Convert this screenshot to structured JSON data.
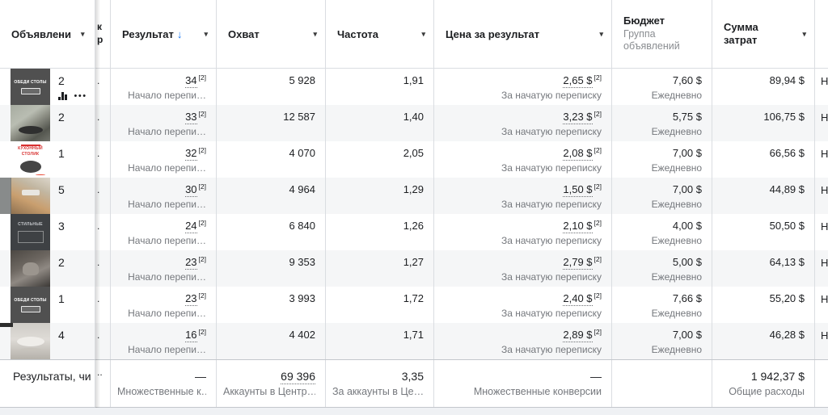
{
  "icons": {
    "caret": "▾",
    "more": "•••",
    "sort_down": "↓"
  },
  "colors": {
    "accent_blue": "#1877f2",
    "stripe": "#f5f6f7",
    "border": "#dadde1",
    "text": "#1c1e21",
    "muted": "#75787d"
  },
  "header": {
    "ads": {
      "label": "Объявлени"
    },
    "sliver": {
      "line1": "к",
      "line2": "р"
    },
    "result": {
      "label": "Результат"
    },
    "reach": {
      "label": "Охват"
    },
    "frequency": {
      "label": "Частота"
    },
    "cost_per_result": {
      "label": "Цена за результат"
    },
    "budget": {
      "label": "Бюджет",
      "sublabel": "Группа объявлений"
    },
    "amount_spent": {
      "line1": "Сумма",
      "line2": "затрат"
    }
  },
  "rows": [
    {
      "count": "2",
      "has_icons": true,
      "thumb": {
        "kind": "t-dark-promo",
        "text": "ОБЕДИ СТОЛЫ"
      },
      "sliver": ".",
      "result": "34",
      "result_sup": "[2]",
      "result_note": "Начало перепи…",
      "reach": "5 928",
      "frequency": "1,91",
      "cpr": "2,65 $",
      "cpr_sup": "[2]",
      "cpr_note": "За начатую переписку",
      "budget": "7,60 $",
      "budget_note": "Ежедневно",
      "spent": "89,94 $",
      "edge": "Н"
    },
    {
      "count": "2",
      "has_icons": false,
      "thumb": {
        "kind": "t-sofa",
        "text": ""
      },
      "sliver": ".",
      "result": "33",
      "result_sup": "[2]",
      "result_note": "Начало перепи…",
      "reach": "12 587",
      "frequency": "1,40",
      "cpr": "3,23 $",
      "cpr_sup": "[2]",
      "cpr_note": "За начатую переписку",
      "budget": "5,75 $",
      "budget_note": "Ежедневно",
      "spent": "106,75 $",
      "edge": "Н"
    },
    {
      "count": "1",
      "has_icons": false,
      "thumb": {
        "kind": "t-kitchen",
        "text": "КУХОННЫЙ СТОЛИК"
      },
      "sliver": ".",
      "result": "32",
      "result_sup": "[2]",
      "result_note": "Начало перепи…",
      "reach": "4 070",
      "frequency": "2,05",
      "cpr": "2,08 $",
      "cpr_sup": "[2]",
      "cpr_note": "За начатую переписку",
      "budget": "7,00 $",
      "budget_note": "Ежедневно",
      "spent": "66,56 $",
      "edge": "Н"
    },
    {
      "count": "5",
      "has_icons": false,
      "thumb": {
        "kind": "t-interior",
        "text": ""
      },
      "sliver": ".",
      "result": "30",
      "result_sup": "[2]",
      "result_note": "Начало перепи…",
      "reach": "4 964",
      "frequency": "1,29",
      "cpr": "1,50 $",
      "cpr_sup": "[2]",
      "cpr_note": "За начатую переписку",
      "budget": "7,00 $",
      "budget_note": "Ежедневно",
      "spent": "44,89 $",
      "edge": "Н"
    },
    {
      "count": "3",
      "has_icons": false,
      "thumb": {
        "kind": "t-story-dark",
        "text": "СТИЛЬНЫЕ"
      },
      "sliver": ".",
      "result": "24",
      "result_sup": "[2]",
      "result_note": "Начало перепи…",
      "reach": "6 840",
      "frequency": "1,26",
      "cpr": "2,10 $",
      "cpr_sup": "[2]",
      "cpr_note": "За начатую переписку",
      "budget": "4,00 $",
      "budget_note": "Ежедневно",
      "spent": "50,50 $",
      "edge": "Н"
    },
    {
      "count": "2",
      "has_icons": false,
      "thumb": {
        "kind": "t-chair",
        "text": ""
      },
      "sliver": ".",
      "result": "23",
      "result_sup": "[2]",
      "result_note": "Начало перепи…",
      "reach": "9 353",
      "frequency": "1,27",
      "cpr": "2,79 $",
      "cpr_sup": "[2]",
      "cpr_note": "За начатую переписку",
      "budget": "5,00 $",
      "budget_note": "Ежедневно",
      "spent": "64,13 $",
      "edge": "Н"
    },
    {
      "count": "1",
      "has_icons": false,
      "thumb": {
        "kind": "t-dark-promo",
        "text": "ОБЕДИ СТОЛЫ"
      },
      "sliver": ".",
      "result": "23",
      "result_sup": "[2]",
      "result_note": "Начало перепи…",
      "reach": "3 993",
      "frequency": "1,72",
      "cpr": "2,40 $",
      "cpr_sup": "[2]",
      "cpr_note": "За начатую переписку",
      "budget": "7,66 $",
      "budget_note": "Ежедневно",
      "spent": "55,20 $",
      "edge": "Н"
    },
    {
      "count": "4",
      "has_icons": false,
      "thumb": {
        "kind": "t-round-table",
        "text": ""
      },
      "sliver": ".",
      "result": "16",
      "result_sup": "[2]",
      "result_note": "Начало перепи…",
      "reach": "4 402",
      "frequency": "1,71",
      "cpr": "2,89 $",
      "cpr_sup": "[2]",
      "cpr_note": "За начатую переписку",
      "budget": "7,00 $",
      "budget_note": "Ежедневно",
      "spent": "46,28 $",
      "edge": "Н"
    }
  ],
  "footer": {
    "label": "Результаты, чи",
    "sliver": "..",
    "result_value": "—",
    "result_note": "Множественные к…",
    "reach_value": "69 396",
    "reach_note": "Аккаунты в Центр…",
    "frequency_value": "3,35",
    "frequency_note": "За аккаунты в Це…",
    "cpr_value": "—",
    "cpr_note": "Множественные конверсии",
    "budget_value": "",
    "budget_note": "",
    "spent_value": "1 942,37 $",
    "spent_note": "Общие расходы",
    "edge": ""
  }
}
